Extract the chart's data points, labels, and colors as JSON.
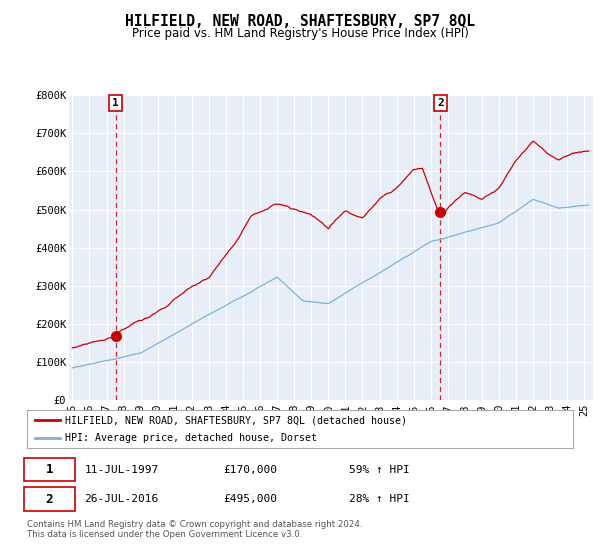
{
  "title": "HILFIELD, NEW ROAD, SHAFTESBURY, SP7 8QL",
  "subtitle": "Price paid vs. HM Land Registry's House Price Index (HPI)",
  "ylim": [
    0,
    800000
  ],
  "yticks": [
    0,
    100000,
    200000,
    300000,
    400000,
    500000,
    600000,
    700000,
    800000
  ],
  "ytick_labels": [
    "£0",
    "£100K",
    "£200K",
    "£300K",
    "£400K",
    "£500K",
    "£600K",
    "£700K",
    "£800K"
  ],
  "sale1_x": 1997.53,
  "sale1_y": 170000,
  "sale2_x": 2016.57,
  "sale2_y": 495000,
  "hpi_color": "#7ab4d8",
  "prop_color": "#cc0000",
  "dash_color": "#cc0000",
  "plot_bg": "#e8eef8",
  "legend_label1": "HILFIELD, NEW ROAD, SHAFTESBURY, SP7 8QL (detached house)",
  "legend_label2": "HPI: Average price, detached house, Dorset",
  "ann1_date": "11-JUL-1997",
  "ann1_price": "£170,000",
  "ann1_hpi": "59% ↑ HPI",
  "ann2_date": "26-JUL-2016",
  "ann2_price": "£495,000",
  "ann2_hpi": "28% ↑ HPI",
  "footnote": "Contains HM Land Registry data © Crown copyright and database right 2024.\nThis data is licensed under the Open Government Licence v3.0.",
  "x_start": 1994.8,
  "x_end": 2025.5,
  "xtick_years": [
    1995,
    1996,
    1997,
    1998,
    1999,
    2000,
    2001,
    2002,
    2003,
    2004,
    2005,
    2006,
    2007,
    2008,
    2009,
    2010,
    2011,
    2012,
    2013,
    2014,
    2015,
    2016,
    2017,
    2018,
    2019,
    2020,
    2021,
    2022,
    2023,
    2024,
    2025
  ]
}
